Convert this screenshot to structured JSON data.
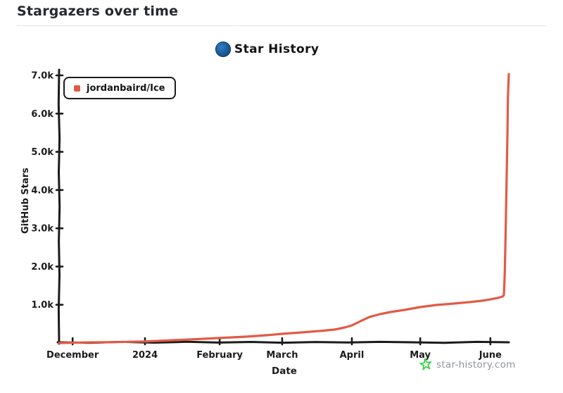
{
  "page": {
    "title": "Stargazers over time"
  },
  "chart": {
    "title": "Star History",
    "legend_label": "jordanbaird/Ice",
    "watermark_text": "star-history.com",
    "logo_icon": "star-history-logo",
    "watermark_icon": "green-star"
  },
  "colors": {
    "series": "#e15b46",
    "axis": "#1b1b1b",
    "logo_blue": "#1a5795",
    "star_green": "#3fd24d",
    "watermark_gray": "#8f9499",
    "header_text": "#24292f",
    "divider": "#e2e4e8"
  },
  "chart_data": {
    "type": "line",
    "title": "Star History",
    "xlabel": "Date",
    "ylabel": "GitHub Stars",
    "ylim": [
      0,
      7035
    ],
    "grid": false,
    "legend_position": "top-left",
    "x_ticks": [
      {
        "label": "December",
        "f": 0.03
      },
      {
        "label": "2024",
        "f": 0.191
      },
      {
        "label": "February",
        "f": 0.357
      },
      {
        "label": "March",
        "f": 0.496
      },
      {
        "label": "April",
        "f": 0.651
      },
      {
        "label": "May",
        "f": 0.803
      },
      {
        "label": "June",
        "f": 0.959
      }
    ],
    "y_ticks": [
      {
        "label": "1.0k",
        "value": 1000
      },
      {
        "label": "2.0k",
        "value": 2000
      },
      {
        "label": "3.0k",
        "value": 3000
      },
      {
        "label": "4.0k",
        "value": 4000
      },
      {
        "label": "5.0k",
        "value": 5000
      },
      {
        "label": "6.0k",
        "value": 6000
      },
      {
        "label": "7.0k",
        "value": 7000
      }
    ],
    "series": [
      {
        "name": "jordanbaird/Ice",
        "color": "#e15b46",
        "points": [
          [
            0.0,
            0
          ],
          [
            0.03,
            8
          ],
          [
            0.06,
            15
          ],
          [
            0.12,
            22
          ],
          [
            0.191,
            40
          ],
          [
            0.26,
            75
          ],
          [
            0.322,
            110
          ],
          [
            0.357,
            130
          ],
          [
            0.416,
            165
          ],
          [
            0.463,
            205
          ],
          [
            0.496,
            240
          ],
          [
            0.541,
            278
          ],
          [
            0.581,
            315
          ],
          [
            0.612,
            350
          ],
          [
            0.635,
            405
          ],
          [
            0.651,
            460
          ],
          [
            0.67,
            570
          ],
          [
            0.69,
            680
          ],
          [
            0.714,
            755
          ],
          [
            0.737,
            810
          ],
          [
            0.768,
            866
          ],
          [
            0.803,
            940
          ],
          [
            0.839,
            995
          ],
          [
            0.878,
            1032
          ],
          [
            0.914,
            1070
          ],
          [
            0.94,
            1105
          ],
          [
            0.959,
            1140
          ],
          [
            0.976,
            1180
          ],
          [
            0.986,
            1215
          ],
          [
            0.989,
            1255
          ],
          [
            0.991,
            1800
          ],
          [
            0.993,
            2900
          ],
          [
            0.995,
            4200
          ],
          [
            0.997,
            5500
          ],
          [
            0.998,
            6400
          ],
          [
            1.0,
            7035
          ]
        ]
      }
    ]
  }
}
